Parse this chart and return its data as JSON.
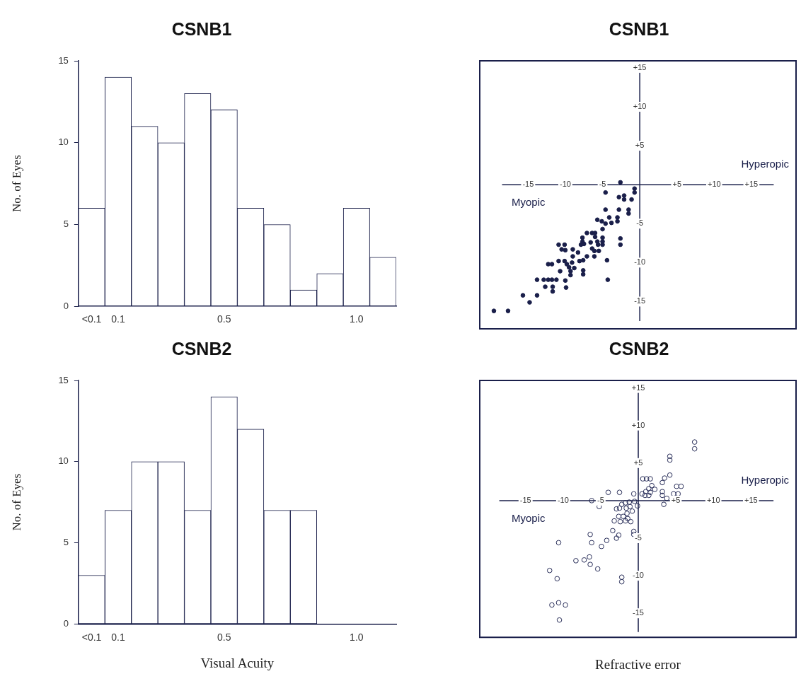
{
  "chart_data": [
    {
      "type": "bar",
      "title": "CSNB1",
      "ylabel": "No. of Eyes",
      "categories": [
        "<0.1",
        "0.1",
        null,
        null,
        null,
        "0.5",
        null,
        null,
        null,
        null,
        "1.0",
        null
      ],
      "values": [
        6,
        14,
        11,
        10,
        13,
        12,
        6,
        5,
        1,
        2,
        6,
        3
      ],
      "color": "#ffffff",
      "ylim": [
        0,
        15
      ],
      "yticks": [
        0,
        5,
        10,
        15
      ],
      "grid": false,
      "legend": false
    },
    {
      "type": "bar",
      "title": "CSNB2",
      "ylabel": "No. of Eyes",
      "xlabel": "Visual Acuity",
      "categories": [
        "<0.1",
        "0.1",
        null,
        null,
        null,
        "0.5",
        null,
        null,
        null,
        null,
        "1.0",
        null
      ],
      "values": [
        3,
        7,
        10,
        10,
        7,
        14,
        12,
        7,
        7,
        0,
        0,
        0
      ],
      "color": "#ffffff",
      "ylim": [
        0,
        15
      ],
      "yticks": [
        0,
        5,
        10,
        15
      ],
      "grid": false,
      "legend": false
    },
    {
      "type": "scatter",
      "title": "CSNB1",
      "annotations": [
        "Myopic",
        "Hyperopic"
      ],
      "marker": "circle",
      "color": "#1a1f4a",
      "grid": false,
      "legend": false,
      "x": [
        -2.6,
        -0.7,
        -0.7,
        -4.6,
        -2.8,
        -2.1,
        -2.1,
        -1.1,
        -4.6,
        -2.8,
        -1.5,
        -1.5,
        -5.7,
        -5.1,
        -4.6,
        -4.1,
        -3.8,
        -3.0,
        -3.0,
        -5.0,
        -7.1,
        -6.4,
        -6.0,
        -6.0,
        -5.0,
        -5.0,
        -5.0,
        -2.6,
        -2.6,
        -7.7,
        -7.7,
        -7.9,
        -7.5,
        -6.6,
        -6.4,
        -5.7,
        -5.6,
        -5.5,
        -6.1,
        -6.1,
        -10.9,
        -10.1,
        -10.5,
        -10.0,
        -9.0,
        -9.0,
        -8.3,
        -7.1,
        -7.6,
        -8.1,
        -10.9,
        -10.1,
        -9.8,
        -9.1,
        -9.5,
        -8.8,
        -9.3,
        -9.3,
        -7.6,
        -7.6,
        -4.4,
        -12.3,
        -11.8,
        -10.7,
        -13.8,
        -12.9,
        -12.3,
        -11.8,
        -11.2,
        -10.0,
        -4.3,
        -12.7,
        -11.7,
        -11.7,
        -9.9,
        -15.7,
        -13.8,
        -14.8,
        -19.6,
        -17.7
      ],
      "values": [
        0.3,
        -0.5,
        -1.0,
        -1.0,
        -1.6,
        -1.4,
        -1.9,
        -1.9,
        -3.2,
        -3.2,
        -3.2,
        -3.7,
        -4.5,
        -4.7,
        -5.0,
        -4.2,
        -4.9,
        -4.2,
        -4.7,
        -5.7,
        -6.2,
        -6.2,
        -6.2,
        -6.7,
        -6.8,
        -7.3,
        -7.7,
        -6.9,
        -7.7,
        -6.8,
        -7.3,
        -7.7,
        -7.6,
        -7.4,
        -8.2,
        -7.3,
        -7.7,
        -8.5,
        -8.5,
        -9.2,
        -7.7,
        -7.7,
        -8.3,
        -8.4,
        -8.3,
        -9.2,
        -8.7,
        -9.2,
        -9.7,
        -9.8,
        -9.8,
        -9.8,
        -10.2,
        -10.0,
        -10.6,
        -10.7,
        -11.1,
        -11.6,
        -11.0,
        -11.5,
        -9.7,
        -10.2,
        -10.2,
        -11.1,
        -12.2,
        -12.2,
        -12.2,
        -12.2,
        -12.2,
        -12.3,
        -12.2,
        -13.1,
        -13.1,
        -13.7,
        -13.2,
        -14.2,
        -14.2,
        -15.1,
        -16.2,
        -16.2
      ],
      "xlim": [
        -21.5,
        21
      ],
      "ylim": [
        -18.5,
        15.9
      ],
      "xticks": [
        -15,
        -10,
        -5,
        {
          "value": 5,
          "label": "+5"
        },
        {
          "value": 10,
          "label": "+10"
        },
        {
          "value": 15,
          "label": "+15"
        }
      ],
      "yticks": [
        {
          "value": 15,
          "label": "+15"
        },
        {
          "value": 10,
          "label": "+10"
        },
        {
          "value": 5,
          "label": "+5"
        },
        -5,
        -10,
        -15
      ]
    },
    {
      "type": "scatter",
      "title": "CSNB2",
      "xlabel": "Refractive error",
      "annotations": [
        "Myopic",
        "Hyperopic"
      ],
      "marker": "circle",
      "color": "#2a2f5a",
      "grid": false,
      "legend": false,
      "x": [
        7.5,
        7.5,
        4.2,
        4.2,
        4.2,
        3.5,
        3.2,
        0.6,
        1.1,
        1.6,
        5.1,
        5.7,
        1.8,
        2.2,
        1.4,
        1.0,
        1.6,
        0.5,
        0.9,
        1.4,
        3.2,
        3.2,
        3.8,
        3.4,
        4.7,
        5.3,
        -4.0,
        -2.5,
        -0.6,
        -6.2,
        -5.2,
        -2.2,
        -1.7,
        -1.2,
        -0.5,
        -0.1,
        -2.9,
        -2.5,
        -1.6,
        -1.1,
        -0.8,
        -1.5,
        -2.6,
        -2.0,
        -1.4,
        -3.2,
        -2.4,
        -1.7,
        -1.0,
        -3.4,
        -2.6,
        -2.9,
        -0.6,
        -0.6,
        -6.4,
        -6.2,
        -4.2,
        -4.9,
        -10.6,
        -8.3,
        -7.2,
        -6.5,
        -6.4,
        -5.4,
        -11.8,
        -10.8,
        -2.2,
        -2.2,
        -11.5,
        -10.6,
        -9.7,
        -10.5
      ],
      "values": [
        7.8,
        6.9,
        5.9,
        5.4,
        3.4,
        3.0,
        2.4,
        2.9,
        2.9,
        2.9,
        1.9,
        1.9,
        2.0,
        1.5,
        1.6,
        1.2,
        1.1,
        0.9,
        0.7,
        0.7,
        1.2,
        0.7,
        0.3,
        -0.5,
        0.9,
        0.9,
        1.1,
        1.1,
        0.9,
        0,
        -0.8,
        -0.5,
        -0.3,
        -0.2,
        -0.1,
        -0.7,
        -1.1,
        -1.0,
        -1.0,
        -0.8,
        -1.4,
        -1.7,
        -2.1,
        -2.1,
        -2.4,
        -2.7,
        -2.8,
        -2.7,
        -2.8,
        -4.0,
        -4.6,
        -5.0,
        -4.1,
        -4.5,
        -4.5,
        -5.6,
        -5.3,
        -6.1,
        -5.6,
        -8.0,
        -7.9,
        -7.5,
        -8.5,
        -9.1,
        -9.3,
        -10.4,
        -10.2,
        -10.8,
        -13.9,
        -13.6,
        -13.9,
        -15.9
      ],
      "xlim": [
        -21.1,
        21
      ],
      "ylim": [
        -18.2,
        16
      ],
      "xticks": [
        -15,
        -10,
        -5,
        {
          "value": 5,
          "label": "+5"
        },
        {
          "value": 10,
          "label": "+10"
        },
        {
          "value": 15,
          "label": "+15"
        }
      ],
      "yticks": [
        {
          "value": 15,
          "label": "+15"
        },
        {
          "value": 10,
          "label": "+10"
        },
        {
          "value": 5,
          "label": "+5"
        },
        -5,
        -10,
        -15
      ]
    }
  ]
}
